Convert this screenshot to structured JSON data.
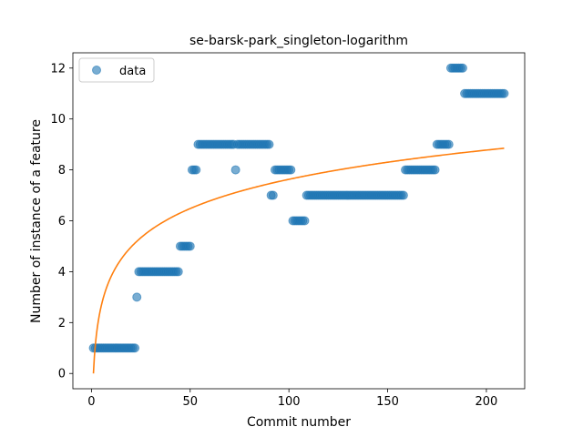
{
  "chart_data": {
    "type": "scatter",
    "title": "se-barsk-park_singleton-logarithm",
    "xlabel": "Commit number",
    "ylabel": "Number of instance of a feature",
    "xlim": [
      -9.4,
      219.4
    ],
    "ylim": [
      -0.6,
      12.6
    ],
    "xticks": [
      0,
      50,
      100,
      150,
      200
    ],
    "yticks": [
      0,
      2,
      4,
      6,
      8,
      10,
      12
    ],
    "grid": false,
    "legend": {
      "placement": "top-left",
      "entries": [
        "data"
      ]
    },
    "colors": {
      "scatter": "#1f77b4",
      "fit": "#ff7f0e"
    },
    "series": [
      {
        "name": "data",
        "kind": "scatter",
        "segments": [
          {
            "x_from": 1,
            "x_to": 22,
            "y": 1
          },
          {
            "x_from": 23,
            "x_to": 23,
            "y": 3
          },
          {
            "x_from": 24,
            "x_to": 44,
            "y": 4
          },
          {
            "x_from": 45,
            "x_to": 50,
            "y": 5
          },
          {
            "x_from": 51,
            "x_to": 53,
            "y": 8
          },
          {
            "x_from": 54,
            "x_to": 72,
            "y": 9
          },
          {
            "x_from": 73,
            "x_to": 73,
            "y": 8
          },
          {
            "x_from": 74,
            "x_to": 90,
            "y": 9
          },
          {
            "x_from": 91,
            "x_to": 92,
            "y": 7
          },
          {
            "x_from": 93,
            "x_to": 101,
            "y": 8
          },
          {
            "x_from": 102,
            "x_to": 108,
            "y": 6
          },
          {
            "x_from": 109,
            "x_to": 158,
            "y": 7
          },
          {
            "x_from": 159,
            "x_to": 174,
            "y": 8
          },
          {
            "x_from": 175,
            "x_to": 181,
            "y": 9
          },
          {
            "x_from": 182,
            "x_to": 188,
            "y": 12
          },
          {
            "x_from": 189,
            "x_to": 209,
            "y": 11
          }
        ]
      },
      {
        "kind": "line",
        "fit": "logarithmic",
        "x_range": [
          1,
          209
        ],
        "y_at_x1": 0,
        "y_at_x209": 8.85
      }
    ]
  }
}
